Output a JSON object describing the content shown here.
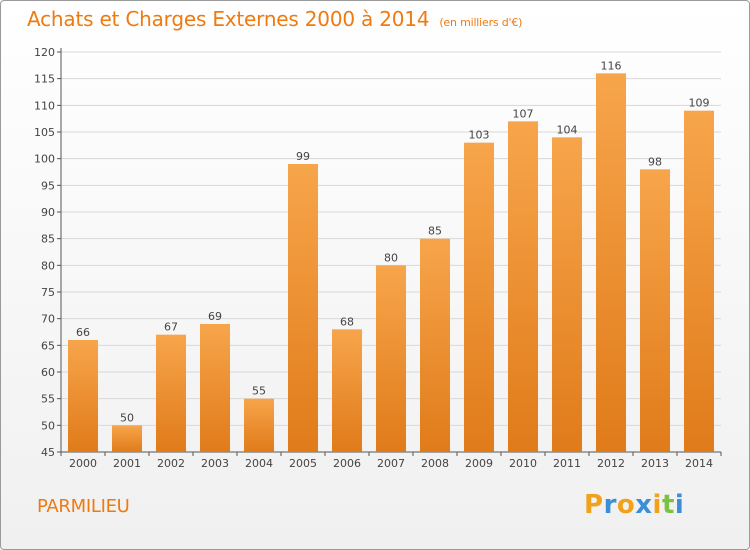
{
  "header": {
    "title": "Achats et Charges Externes 2000 à 2014",
    "subtitle": "(en milliers d'€)"
  },
  "footer": {
    "commune": "PARMILIEU",
    "logo_letters": [
      "P",
      "r",
      "o",
      "x",
      "i",
      "t",
      "i"
    ],
    "logo_colors": [
      "#f2a21a",
      "#3b8ed8",
      "#f2a21a",
      "#3b8ed8",
      "#f2a21a",
      "#7cc242",
      "#3b8ed8"
    ]
  },
  "chart_data": {
    "type": "bar",
    "categories": [
      "2000",
      "2001",
      "2002",
      "2003",
      "2004",
      "2005",
      "2006",
      "2007",
      "2008",
      "2009",
      "2010",
      "2011",
      "2012",
      "2013",
      "2014"
    ],
    "values": [
      66,
      50,
      67,
      69,
      55,
      99,
      68,
      80,
      85,
      103,
      107,
      104,
      116,
      98,
      109
    ],
    "ylim": [
      45,
      120
    ],
    "yticks": [
      45,
      50,
      55,
      60,
      65,
      70,
      75,
      80,
      85,
      90,
      95,
      100,
      105,
      110,
      115,
      120
    ],
    "grid": true,
    "colors": {
      "bar_light": "#f7a54b",
      "bar_dark": "#e07b1a",
      "grid": "#d8d8d8"
    }
  }
}
